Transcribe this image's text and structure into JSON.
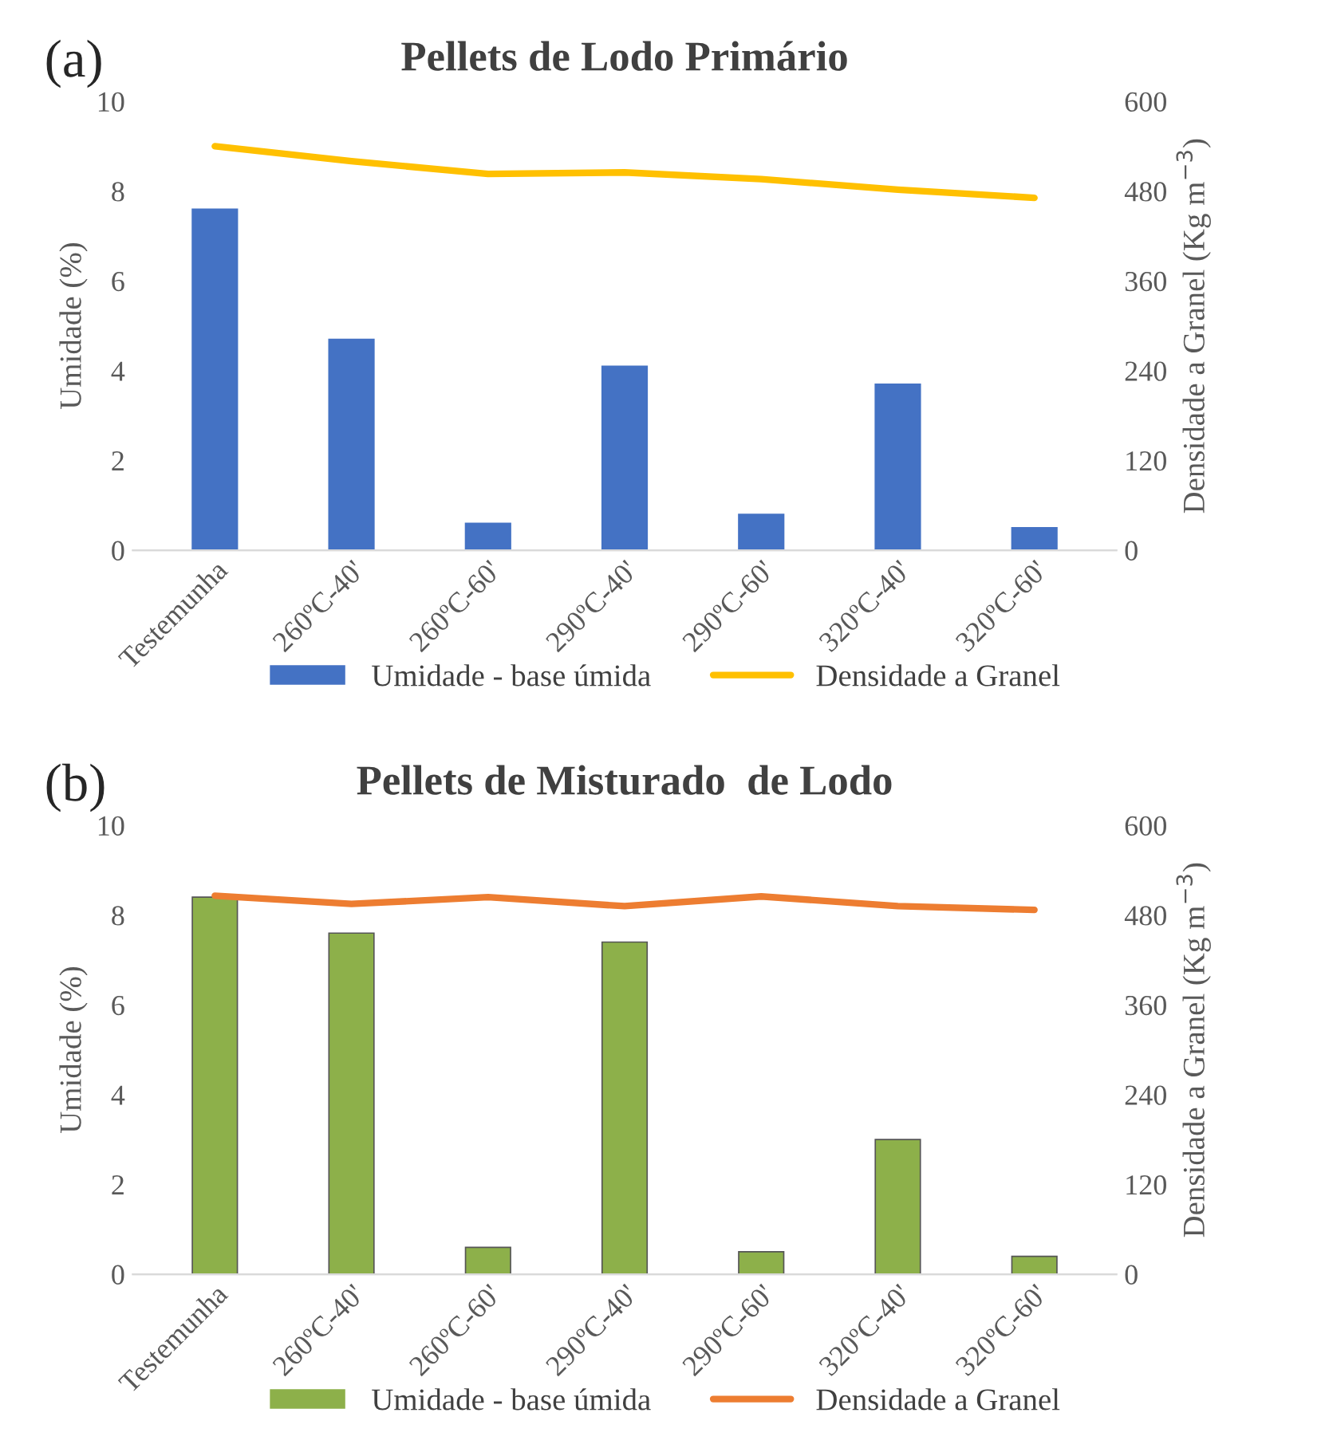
{
  "chart_data": [
    {
      "type": "bar",
      "title": "Pellets de Lodo Primário",
      "annotations": [
        "(a)"
      ],
      "ylabel": "Umidade (%)",
      "y2label": "Densidade a Granel (Kg m$^{−3}$)",
      "categories": [
        "Testemunha",
        "260ºC-40'",
        "260ºC-60'",
        "290ºC-40'",
        "290ºC-60'",
        "320ºC-40'",
        "320ºC-60'"
      ],
      "series": [
        {
          "name": "Umidade - base úmida",
          "color": "#4472c4",
          "values": [
            7.6,
            4.7,
            0.6,
            4.1,
            0.8,
            3.7,
            0.5
          ]
        },
        {
          "name": "Densidade a Granel",
          "type": "line",
          "axis": "y2",
          "color": "#ffc000",
          "values": [
            540,
            520,
            503,
            505,
            496,
            482,
            471
          ]
        }
      ],
      "ylim": [
        0,
        10
      ],
      "yticks": [
        0,
        2,
        4,
        6,
        8,
        10
      ],
      "y2lim": [
        0,
        600
      ],
      "y2ticks": [
        0,
        120,
        240,
        360,
        480,
        600
      ],
      "legend": "bottom",
      "grid": false
    },
    {
      "type": "bar",
      "title": "Pellets de Misturado  de Lodo",
      "annotations": [
        "(b)"
      ],
      "ylabel": "Umidade (%)",
      "y2label": "Densidade a Granel (Kg m$^{−3}$)",
      "categories": [
        "Testemunha",
        "260ºC-40'",
        "260ºC-60'",
        "290ºC-40'",
        "290ºC-60'",
        "320ºC-40'",
        "320ºC-60'"
      ],
      "series": [
        {
          "name": "Umidade - base úmida",
          "color": "#8db04a",
          "values": [
            8.4,
            7.6,
            0.6,
            7.4,
            0.5,
            3.0,
            0.4
          ]
        },
        {
          "name": "Densidade a Granel",
          "type": "line",
          "axis": "y2",
          "color": "#ed7d31",
          "values": [
            506,
            495,
            504,
            492,
            505,
            492,
            487
          ]
        }
      ],
      "ylim": [
        0,
        10
      ],
      "yticks": [
        0,
        2,
        4,
        6,
        8,
        10
      ],
      "y2lim": [
        0,
        600
      ],
      "y2ticks": [
        0,
        120,
        240,
        360,
        480,
        600
      ],
      "legend": "bottom",
      "grid": false
    }
  ]
}
